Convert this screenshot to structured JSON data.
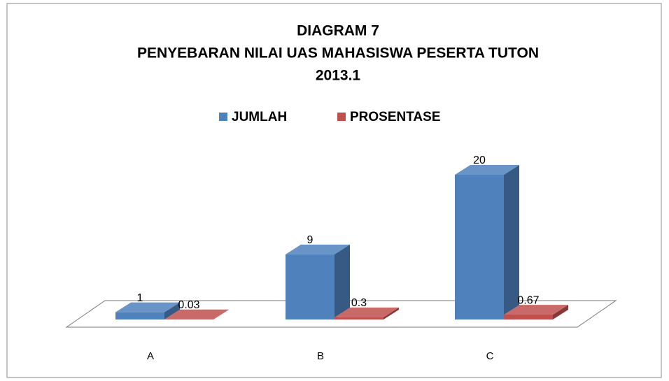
{
  "chart_data": {
    "type": "bar3d",
    "title": [
      "DIAGRAM  7",
      "PENYEBARAN  NILAI UAS MAHASISWA PESERTA TUTON",
      "2013.1"
    ],
    "categories": [
      "A",
      "B",
      "C"
    ],
    "series": [
      {
        "name": "JUMLAH",
        "color": "#4f81bd",
        "values": [
          1,
          9,
          20
        ]
      },
      {
        "name": "PROSENTASE",
        "color": "#c0504d",
        "values": [
          0.03,
          0.3,
          0.67
        ]
      }
    ],
    "legend": "top"
  }
}
